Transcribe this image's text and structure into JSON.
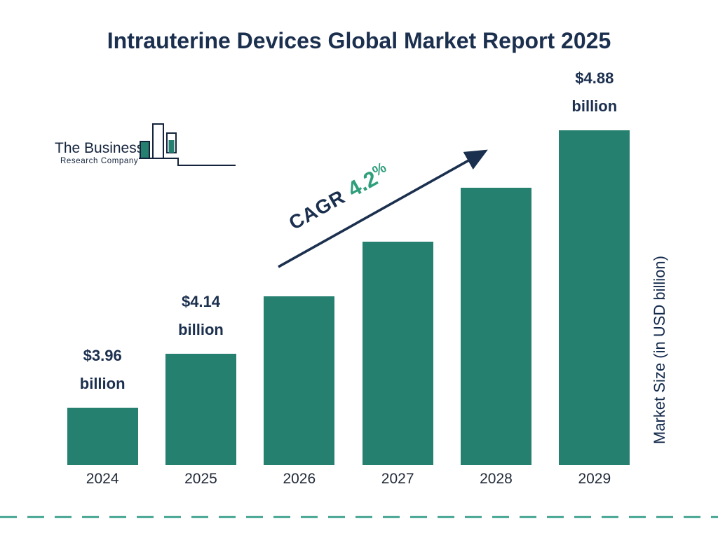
{
  "title": "Intrauterine Devices Global Market Report 2025",
  "logo": {
    "line1": "The Business",
    "line2": "Research Company"
  },
  "annotation": {
    "label": "CAGR",
    "value": "4.2",
    "percent": "%"
  },
  "colors": {
    "bar": "#26806F",
    "navy": "#1B2F4E",
    "green": "#2E9E7B",
    "dashed_line": "#2E9A85"
  },
  "chart_data": {
    "type": "bar",
    "title": "Intrauterine Devices Global Market Report 2025",
    "categories": [
      "2024",
      "2025",
      "2026",
      "2027",
      "2028",
      "2029"
    ],
    "values": [
      3.96,
      4.14,
      4.33,
      4.51,
      4.69,
      4.88
    ],
    "unit": "USD billion",
    "ylabel": "Market Size (in USD billion)",
    "xlabel": "",
    "bar_labels": [
      {
        "amount": "$3.96",
        "unit": "billion"
      },
      {
        "amount": "$4.14",
        "unit": "billion"
      },
      null,
      null,
      null,
      {
        "amount": "$4.88",
        "unit": "billion"
      }
    ],
    "cagr": "4.2%",
    "bar_color": "#26806F",
    "grid": false,
    "legend": "none",
    "axis_visible": false,
    "baseline_value": 3.77,
    "ymax": 4.88
  }
}
